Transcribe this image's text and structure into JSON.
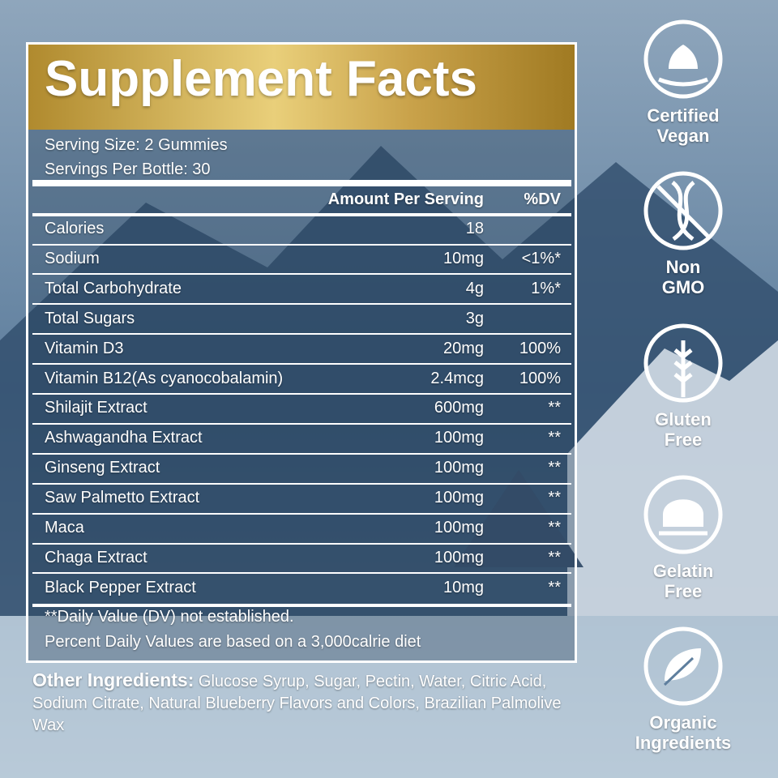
{
  "header": {
    "title": "Supplement Facts"
  },
  "serving": {
    "size": "Serving Size: 2 Gummies",
    "servings": "Servings Per Bottle: 30"
  },
  "table": {
    "columns": [
      "Amount Per Serving",
      "%DV"
    ],
    "rows": [
      [
        "Calories",
        "18"
      ],
      [
        "Sodium",
        "10mg",
        "<1%*"
      ],
      [
        "Total Carbohydrate",
        "4g",
        "1%*"
      ],
      [
        "Total Sugars",
        "3g"
      ],
      [
        "Vitamin D3",
        "20mg",
        "100%"
      ],
      [
        "Vitamin B12(As cyanocobalamin)",
        "2.4mcg",
        "100%"
      ],
      [
        "Shilajit Extract",
        "600mg",
        "**"
      ],
      [
        "Ashwagandha Extract",
        "100mg",
        "**"
      ],
      [
        "Ginseng Extract",
        "100mg",
        "**"
      ],
      [
        "Saw Palmetto Extract",
        "100mg",
        "**"
      ],
      [
        "Maca",
        "100mg",
        "**"
      ],
      [
        "Chaga Extract",
        "100mg",
        "**"
      ],
      [
        "Black Pepper Extract",
        "10mg",
        "**"
      ]
    ]
  },
  "footnotes": [
    "**Daily Value (DV) not established.",
    "Percent Daily Values are based on a 3,000calrie diet"
  ],
  "other_ingredients": {
    "label": "Other Ingredients:",
    "text": " Glucose Syrup, Sugar, Pectin, Water, Citric Acid, Sodium Citrate, Natural Blueberry Flavors and Colors, Brazilian Palmolive Wax"
  },
  "badges": [
    [
      "Certified",
      "Vegan"
    ],
    [
      "Non",
      "GMO"
    ],
    [
      "Gluten",
      "Free"
    ],
    [
      "Gelatin",
      "Free"
    ],
    [
      "Organic",
      "Ingredients"
    ]
  ]
}
